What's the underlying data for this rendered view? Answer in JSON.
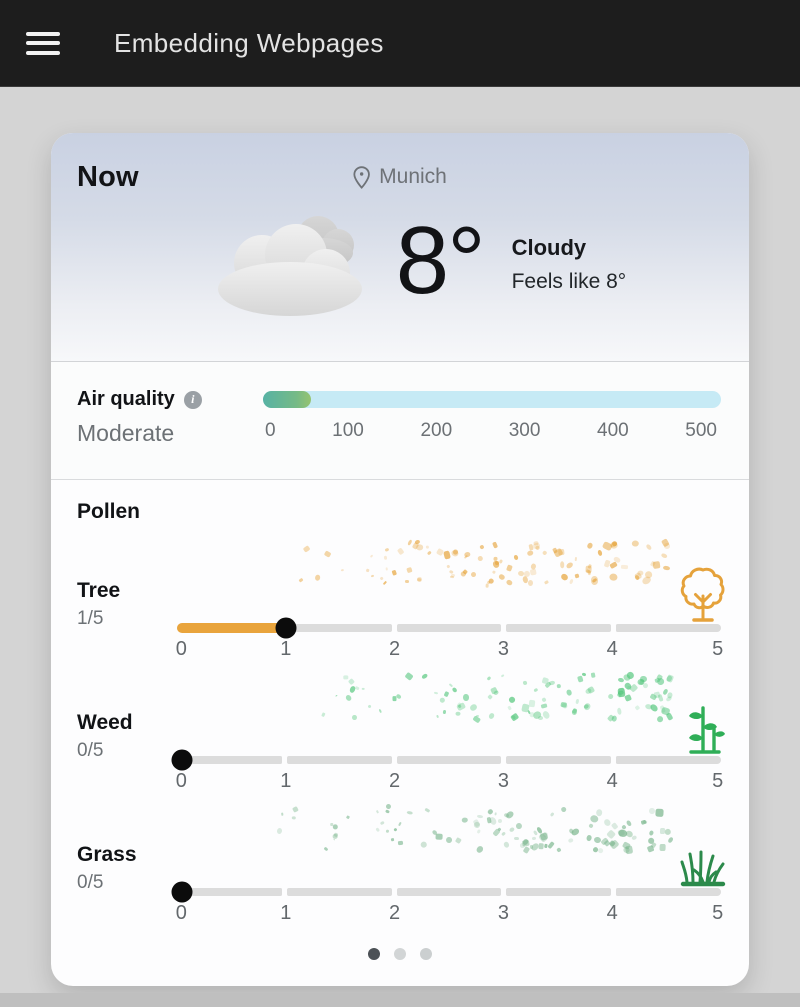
{
  "header": {
    "title": "Embedding Webpages"
  },
  "weather": {
    "now_label": "Now",
    "location": "Munich",
    "temperature": "8°",
    "condition": "Cloudy",
    "feels_like": "Feels like 8°"
  },
  "air_quality": {
    "label": "Air quality",
    "info_icon": "i",
    "status": "Moderate",
    "value": 52,
    "scale_max": 500,
    "ticks": [
      "0",
      "100",
      "200",
      "300",
      "400",
      "500"
    ],
    "bar_color": "#c6eaf5",
    "fill_colors": [
      "#57b2a4",
      "#96c370"
    ]
  },
  "pollen": {
    "label": "Pollen",
    "scale_ticks": [
      "0",
      "1",
      "2",
      "3",
      "4",
      "5"
    ],
    "items": [
      {
        "name": "Tree",
        "display": "1/5",
        "value": 1,
        "max": 5,
        "accent": "#e9a43c",
        "particle_color": "#e7a63f"
      },
      {
        "name": "Weed",
        "display": "0/5",
        "value": 0,
        "max": 5,
        "accent": "#3cba63",
        "particle_color": "#54c67c"
      },
      {
        "name": "Grass",
        "display": "0/5",
        "value": 0,
        "max": 5,
        "accent": "#2f8f4e",
        "particle_color": "#79b58c"
      }
    ]
  },
  "pagination": {
    "count": 3,
    "active": 0
  }
}
